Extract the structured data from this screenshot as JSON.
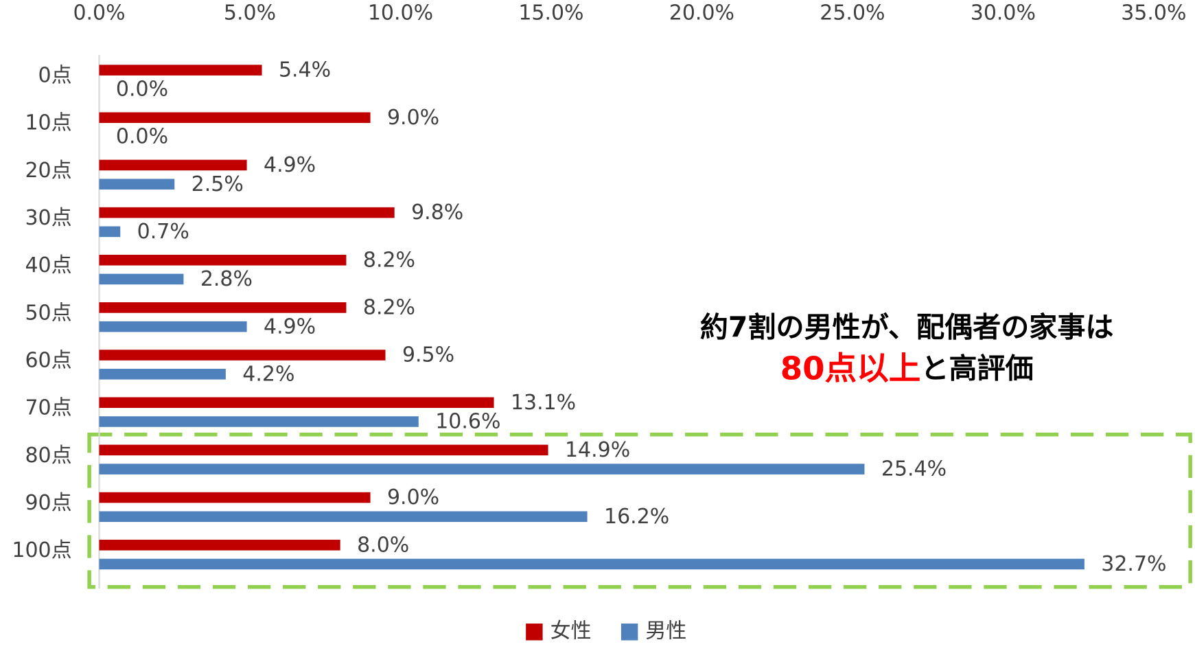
{
  "chart_data": {
    "type": "barh",
    "categories": [
      "0点",
      "10点",
      "20点",
      "30点",
      "40点",
      "50点",
      "60点",
      "70点",
      "80点",
      "90点",
      "100点"
    ],
    "series": [
      {
        "name": "女性",
        "color": "#c00000",
        "values": [
          5.4,
          9.0,
          4.9,
          9.8,
          8.2,
          8.2,
          9.5,
          13.1,
          14.9,
          9.0,
          8.0
        ],
        "value_labels": [
          "5.4%",
          "9.0%",
          "4.9%",
          "9.8%",
          "8.2%",
          "8.2%",
          "9.5%",
          "13.1%",
          "14.9%",
          "9.0%",
          "8.0%"
        ]
      },
      {
        "name": "男性",
        "color": "#4f81bd",
        "values": [
          0.0,
          0.0,
          2.5,
          0.7,
          2.8,
          4.9,
          4.2,
          10.6,
          25.4,
          16.2,
          32.7
        ],
        "value_labels": [
          "0.0%",
          "0.0%",
          "2.5%",
          "0.7%",
          "2.8%",
          "4.9%",
          "4.2%",
          "10.6%",
          "25.4%",
          "16.2%",
          "32.7%"
        ]
      }
    ],
    "xlim": [
      0,
      35
    ],
    "xticks": [
      {
        "value": 0,
        "label": "0.0%"
      },
      {
        "value": 5,
        "label": "5.0%"
      },
      {
        "value": 10,
        "label": "10.0%"
      },
      {
        "value": 15,
        "label": "15.0%"
      },
      {
        "value": 20,
        "label": "20.0%"
      },
      {
        "value": 25,
        "label": "25.0%"
      },
      {
        "value": 30,
        "label": "30.0%"
      },
      {
        "value": 35,
        "label": "35.0%"
      }
    ],
    "legend": "bottom",
    "annotation": {
      "line1": "約7割の男性が、配偶者の家事は",
      "line2_highlight": "80点以上",
      "line2_rest": "と高評価"
    }
  }
}
